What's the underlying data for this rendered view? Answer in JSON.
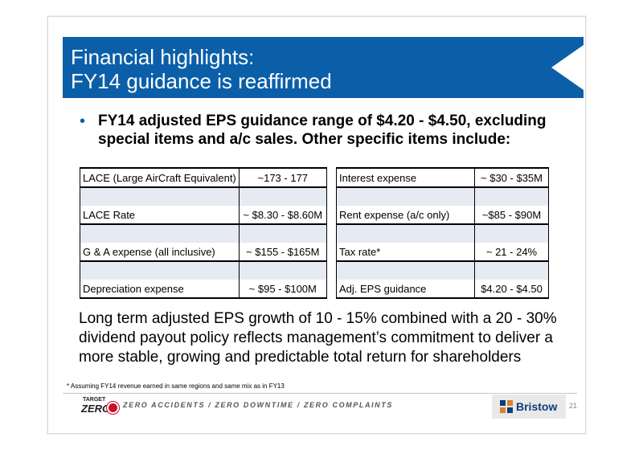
{
  "title": {
    "line1": "Financial highlights:",
    "line2": "FY14 guidance is reaffirmed"
  },
  "bullet": {
    "marker": "•",
    "text": "FY14 adjusted EPS guidance range of $4.20 - $4.50, excluding special items and a/c sales.  Other specific items include:"
  },
  "guidance_left": [
    {
      "label": "LACE (Large AirCraft Equivalent)",
      "value": "~173 - 177"
    },
    {
      "label": "LACE Rate",
      "value": "~ $8.30 - $8.60M"
    },
    {
      "label": "G & A expense (all inclusive)",
      "value": "~ $155 - $165M"
    },
    {
      "label": "Depreciation expense",
      "value": "~ $95 - $100M"
    }
  ],
  "guidance_right": [
    {
      "label": "Interest expense",
      "value": "~ $30 - $35M"
    },
    {
      "label": "Rent expense (a/c only)",
      "value": "~$85 - $90M"
    },
    {
      "label": "Tax rate*",
      "value": "~ 21 - 24%"
    },
    {
      "label": "Adj. EPS guidance",
      "value": "$4.20 - $4.50"
    }
  ],
  "long_term_text": "Long term adjusted EPS growth of 10 - 15% combined with a 20 - 30% dividend payout policy reflects management’s commitment to deliver a more stable, growing and predictable total return for shareholders",
  "footnote": "* Assuming FY14 revenue earned in same regions and same mix as in FY13",
  "footer": {
    "logo_top": "TARGET",
    "logo_main": "ZERO",
    "tagline": "ZERO ACCIDENTS / ZERO DOWNTIME / ZERO COMPLAINTS",
    "brand": "Bristow",
    "page_number": "21"
  },
  "colors": {
    "title_bar": "#0b5fa8",
    "table_gap": "#e6eaf2",
    "brand_blue": "#0b3d7a",
    "target_red": "#c8102e"
  }
}
